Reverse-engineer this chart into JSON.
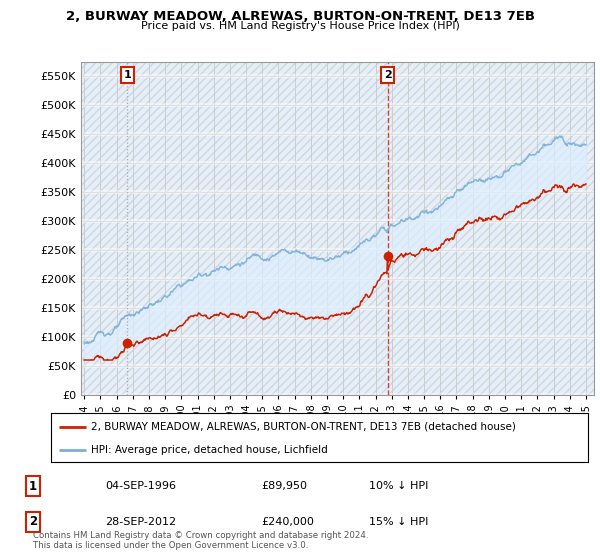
{
  "title": "2, BURWAY MEADOW, ALREWAS, BURTON-ON-TRENT, DE13 7EB",
  "subtitle": "Price paid vs. HM Land Registry's House Price Index (HPI)",
  "ylim": [
    0,
    575000
  ],
  "yticks": [
    0,
    50000,
    100000,
    150000,
    200000,
    250000,
    300000,
    350000,
    400000,
    450000,
    500000,
    550000
  ],
  "ytick_labels": [
    "£0",
    "£50K",
    "£100K",
    "£150K",
    "£200K",
    "£250K",
    "£300K",
    "£350K",
    "£400K",
    "£450K",
    "£500K",
    "£550K"
  ],
  "hpi_color": "#7bafd4",
  "price_color": "#cc2200",
  "vline1_color": "#aaaaaa",
  "vline2_color": "#cc2200",
  "fill_color": "#ddeeff",
  "purchase1_date_x": 1996.67,
  "purchase1_price": 89950,
  "purchase2_date_x": 2012.75,
  "purchase2_price": 240000,
  "legend_line1": "2, BURWAY MEADOW, ALREWAS, BURTON-ON-TRENT, DE13 7EB (detached house)",
  "legend_line2": "HPI: Average price, detached house, Lichfield",
  "table_entries": [
    {
      "num": "1",
      "date": "04-SEP-1996",
      "price": "£89,950",
      "hpi": "10% ↓ HPI"
    },
    {
      "num": "2",
      "date": "28-SEP-2012",
      "price": "£240,000",
      "hpi": "15% ↓ HPI"
    }
  ],
  "footnote": "Contains HM Land Registry data © Crown copyright and database right 2024.\nThis data is licensed under the Open Government Licence v3.0.",
  "background_color": "#ffffff",
  "hatch_color": "#e8eef5",
  "grid_color": "#cccccc",
  "xtick_years": [
    1994,
    1995,
    1996,
    1997,
    1998,
    1999,
    2000,
    2001,
    2002,
    2003,
    2004,
    2005,
    2006,
    2007,
    2008,
    2009,
    2010,
    2011,
    2012,
    2013,
    2014,
    2015,
    2016,
    2017,
    2018,
    2019,
    2020,
    2021,
    2022,
    2023,
    2024,
    2025
  ]
}
